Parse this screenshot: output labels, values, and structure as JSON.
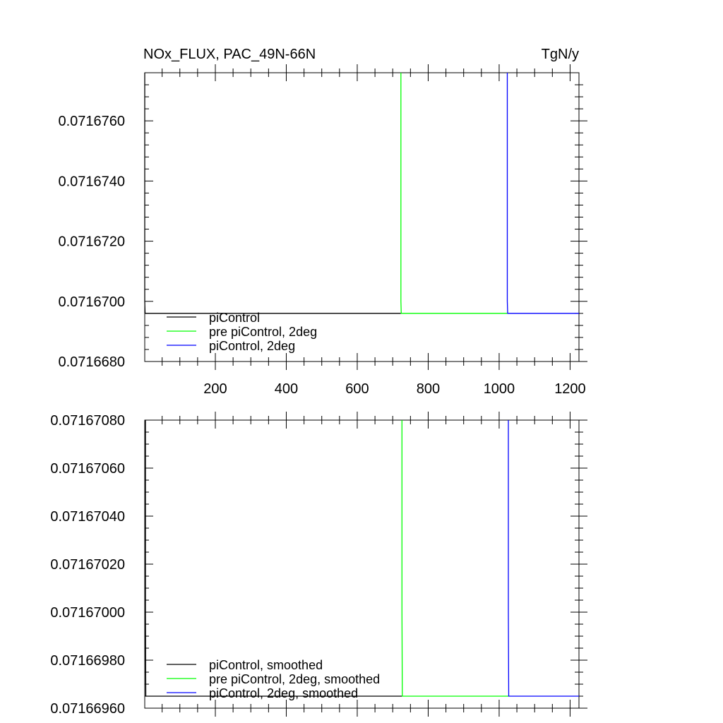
{
  "chart_data": [
    {
      "type": "line",
      "title": "NOx_FLUX, PAC_49N-66N",
      "units": "TgN/y",
      "xlim": [
        1,
        1225
      ],
      "ylim": [
        0.071668,
        0.0716776
      ],
      "x_ticks": [
        200,
        400,
        600,
        800,
        1000,
        1200
      ],
      "x_tick_labels": [
        "200",
        "400",
        "600",
        "800",
        "1000",
        "1200"
      ],
      "y_ticks": [
        0.071668,
        0.07167,
        0.071672,
        0.071674,
        0.071676
      ],
      "y_tick_labels": [
        "0.0716680",
        "0.0716700",
        "0.0716720",
        "0.0716740",
        "0.0716760"
      ],
      "legend_position": "bottom-left",
      "series": [
        {
          "name": "piControl",
          "color": "#000000",
          "x": [
            1,
            1,
            2,
            723
          ],
          "y": [
            0.0716776,
            0.07167,
            0.0716696,
            0.0716696
          ]
        },
        {
          "name": "pre piControl, 2deg",
          "color": "#00ff00",
          "x": [
            723,
            723,
            724,
            1023
          ],
          "y": [
            0.0716776,
            0.07167,
            0.0716696,
            0.0716696
          ]
        },
        {
          "name": "piControl, 2deg",
          "color": "#0000ff",
          "x": [
            1023,
            1023,
            1024,
            1225
          ],
          "y": [
            0.0716776,
            0.07167,
            0.0716696,
            0.0716696
          ]
        }
      ]
    },
    {
      "type": "line",
      "xlim": [
        1,
        1225
      ],
      "ylim": [
        0.0716696,
        0.0716708
      ],
      "x_ticks": [
        200,
        400,
        600,
        800,
        1000,
        1200
      ],
      "y_ticks": [
        0.0716696,
        0.0716698,
        0.07167,
        0.0716702,
        0.0716704,
        0.0716706,
        0.0716708
      ],
      "y_tick_labels": [
        "0.07166960",
        "0.07166980",
        "0.07167000",
        "0.07167020",
        "0.07167040",
        "0.07167060",
        "0.07167080"
      ],
      "legend_position": "bottom-left",
      "series": [
        {
          "name": "piControl, smoothed",
          "color": "#000000",
          "x": [
            3,
            3,
            4,
            726
          ],
          "y": [
            0.0716708,
            0.07167,
            0.07166965,
            0.07166965
          ]
        },
        {
          "name": "pre piControl, 2deg, smoothed",
          "color": "#00ff00",
          "x": [
            726,
            726,
            727,
            1026
          ],
          "y": [
            0.0716708,
            0.07167,
            0.07166965,
            0.07166965
          ]
        },
        {
          "name": "piControl, 2deg, smoothed",
          "color": "#0000ff",
          "x": [
            1026,
            1026,
            1027,
            1225
          ],
          "y": [
            0.0716708,
            0.07167,
            0.07166965,
            0.07166965
          ]
        }
      ]
    }
  ]
}
